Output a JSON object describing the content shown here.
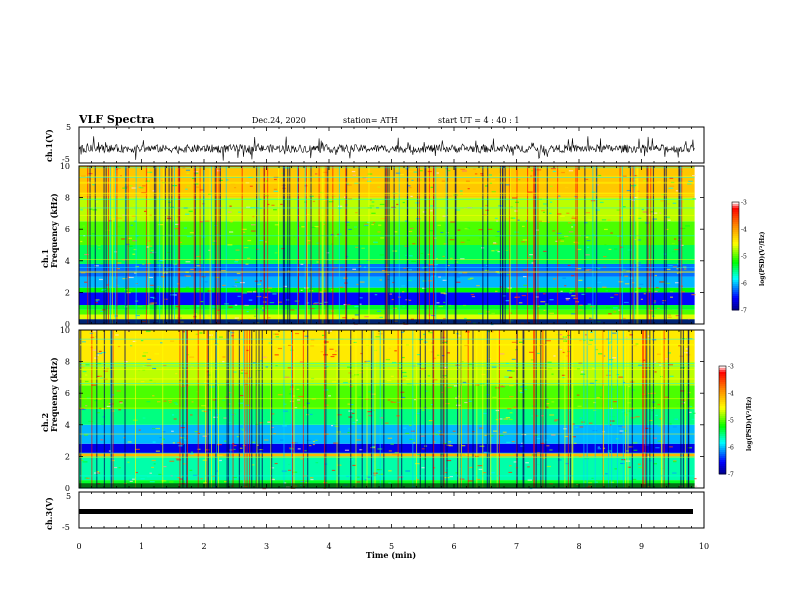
{
  "header": {
    "title": "VLF Spectra",
    "date": "Dec.24, 2020",
    "station": "station= ATH",
    "start": "start  UT =   4 : 40 : 1"
  },
  "chart_data": [
    {
      "type": "line",
      "title": "",
      "ylabel": "ch.1(V)",
      "ylim": [
        -5,
        5
      ],
      "yticks": [
        "5",
        "-5"
      ],
      "xlim": [
        0,
        10
      ],
      "series": [
        {
          "name": "",
          "trace": "noisy waveform, baseline about -1 V, spikes reaching about +3 V and -4 V"
        }
      ]
    },
    {
      "type": "heatmap",
      "ylabel": "ch.1\nFrequency  (kHz)",
      "xlim": [
        0,
        10
      ],
      "ylim": [
        0,
        10
      ],
      "yticks": [
        "0",
        "2",
        "4",
        "6",
        "8",
        "10"
      ],
      "colorbar": {
        "label": "log(PSD)(V²/Hz)",
        "range": [
          -7,
          -3
        ],
        "ticks": [
          "-3",
          "-4",
          "-5",
          "-6",
          "-7"
        ]
      },
      "data_end_min": 9.85,
      "bands": [
        {
          "from_khz": 0.0,
          "to_khz": 0.3,
          "level": -6.3
        },
        {
          "from_khz": 0.3,
          "to_khz": 0.6,
          "level": -4.6
        },
        {
          "from_khz": 0.6,
          "to_khz": 0.9,
          "level": -5.0
        },
        {
          "from_khz": 0.9,
          "to_khz": 1.2,
          "level": -5.3
        },
        {
          "from_khz": 1.2,
          "to_khz": 2.0,
          "level": -6.5
        },
        {
          "from_khz": 2.0,
          "to_khz": 2.3,
          "level": -5.2
        },
        {
          "from_khz": 2.3,
          "to_khz": 3.0,
          "level": -6.0
        },
        {
          "from_khz": 3.0,
          "to_khz": 3.8,
          "level": -6.2
        },
        {
          "from_khz": 3.8,
          "to_khz": 5.0,
          "level": -5.4
        },
        {
          "from_khz": 5.0,
          "to_khz": 6.5,
          "level": -5.0
        },
        {
          "from_khz": 6.5,
          "to_khz": 8.0,
          "level": -4.7
        },
        {
          "from_khz": 8.0,
          "to_khz": 10.0,
          "level": -4.2
        }
      ]
    },
    {
      "type": "heatmap",
      "ylabel": "ch.2\nFrequency  (kHz)",
      "xlim": [
        0,
        10
      ],
      "ylim": [
        0,
        10
      ],
      "yticks": [
        "0",
        "2",
        "4",
        "6",
        "8",
        "10"
      ],
      "colorbar": {
        "label": "log(PSD)(V²/Hz)",
        "range": [
          -7,
          -3
        ],
        "ticks": [
          "-3",
          "-4",
          "-5",
          "-6",
          "-7"
        ]
      },
      "data_end_min": 9.85,
      "bands": [
        {
          "from_khz": 0.0,
          "to_khz": 0.5,
          "level": -5.3
        },
        {
          "from_khz": 0.5,
          "to_khz": 2.0,
          "level": -5.6
        },
        {
          "from_khz": 2.0,
          "to_khz": 2.2,
          "level": -4.1
        },
        {
          "from_khz": 2.2,
          "to_khz": 2.8,
          "level": -6.6
        },
        {
          "from_khz": 2.8,
          "to_khz": 4.0,
          "level": -6.0
        },
        {
          "from_khz": 4.0,
          "to_khz": 5.0,
          "level": -5.5
        },
        {
          "from_khz": 5.0,
          "to_khz": 6.5,
          "level": -5.0
        },
        {
          "from_khz": 6.5,
          "to_khz": 8.0,
          "level": -4.7
        },
        {
          "from_khz": 8.0,
          "to_khz": 10.0,
          "level": -4.4
        }
      ]
    },
    {
      "type": "line",
      "ylabel": "ch.3(V)",
      "ylim": [
        -5,
        5
      ],
      "yticks": [
        "5",
        "-5"
      ],
      "xlim": [
        0,
        10
      ],
      "xlabel": "Time  (min)",
      "xticks": [
        "0",
        "1",
        "2",
        "3",
        "4",
        "5",
        "6",
        "7",
        "8",
        "9",
        "10"
      ],
      "series": [
        {
          "name": "",
          "trace": "flat line near -1 V"
        }
      ]
    }
  ],
  "palette": [
    "#000080",
    "#0000ff",
    "#00ffff",
    "#00ff00",
    "#ffff00",
    "#ff8000",
    "#ff0000",
    "#ffffff"
  ]
}
